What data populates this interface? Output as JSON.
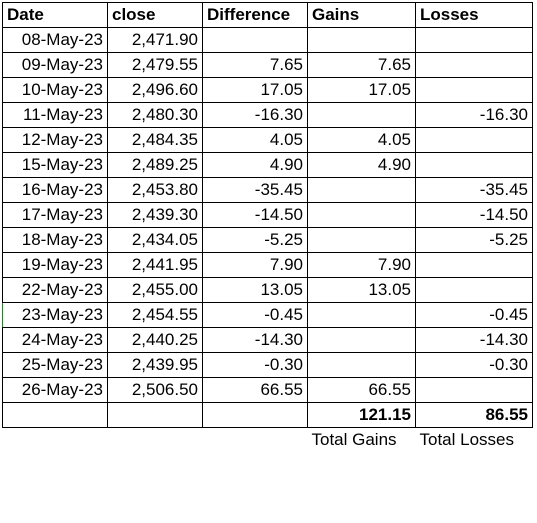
{
  "headers": [
    "Date",
    "close",
    "Difference",
    "Gains",
    "Losses"
  ],
  "rows": [
    {
      "date": "08-May-23",
      "close": "2,471.90",
      "diff": "",
      "gain": "",
      "loss": ""
    },
    {
      "date": "09-May-23",
      "close": "2,479.55",
      "diff": "7.65",
      "gain": "7.65",
      "loss": ""
    },
    {
      "date": "10-May-23",
      "close": "2,496.60",
      "diff": "17.05",
      "gain": "17.05",
      "loss": ""
    },
    {
      "date": "11-May-23",
      "close": "2,480.30",
      "diff": "-16.30",
      "gain": "",
      "loss": "-16.30"
    },
    {
      "date": "12-May-23",
      "close": "2,484.35",
      "diff": "4.05",
      "gain": "4.05",
      "loss": ""
    },
    {
      "date": "15-May-23",
      "close": "2,489.25",
      "diff": "4.90",
      "gain": "4.90",
      "loss": ""
    },
    {
      "date": "16-May-23",
      "close": "2,453.80",
      "diff": "-35.45",
      "gain": "",
      "loss": "-35.45"
    },
    {
      "date": "17-May-23",
      "close": "2,439.30",
      "diff": "-14.50",
      "gain": "",
      "loss": "-14.50"
    },
    {
      "date": "18-May-23",
      "close": "2,434.05",
      "diff": "-5.25",
      "gain": "",
      "loss": "-5.25"
    },
    {
      "date": "19-May-23",
      "close": "2,441.95",
      "diff": "7.90",
      "gain": "7.90",
      "loss": ""
    },
    {
      "date": "22-May-23",
      "close": "2,455.00",
      "diff": "13.05",
      "gain": "13.05",
      "loss": ""
    },
    {
      "date": "23-May-23",
      "close": "2,454.55",
      "diff": "-0.45",
      "gain": "",
      "loss": "-0.45"
    },
    {
      "date": "24-May-23",
      "close": "2,440.25",
      "diff": "-14.30",
      "gain": "",
      "loss": "-14.30"
    },
    {
      "date": "25-May-23",
      "close": "2,439.95",
      "diff": "-0.30",
      "gain": "",
      "loss": "-0.30"
    },
    {
      "date": "26-May-23",
      "close": "2,506.50",
      "diff": "66.55",
      "gain": "66.55",
      "loss": ""
    }
  ],
  "totals": {
    "gains": "121.15",
    "losses": "86.55"
  },
  "total_labels": {
    "gains": "Total Gains",
    "losses": "Total Losses"
  }
}
